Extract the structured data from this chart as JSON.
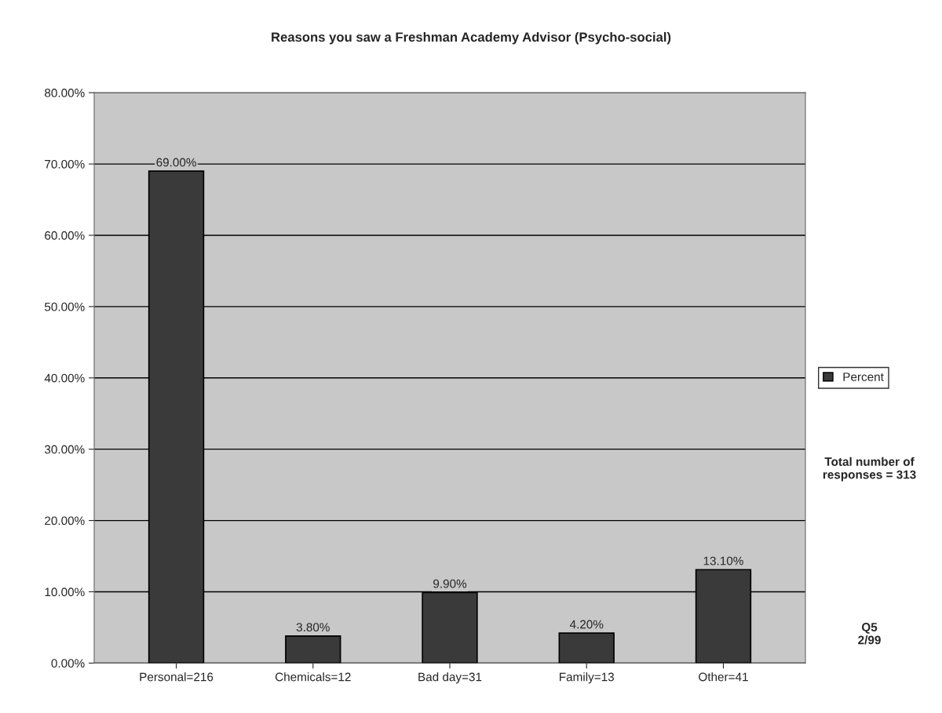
{
  "chart_data": {
    "type": "bar",
    "title": "Reasons you saw a Freshman Academy Advisor (Psycho-social)",
    "categories": [
      "Personal=216",
      "Chemicals=12",
      "Bad day=31",
      "Family=13",
      "Other=41"
    ],
    "series": [
      {
        "name": "Percent",
        "color": "#3a3a3a",
        "values": [
          69.0,
          3.8,
          9.9,
          4.2,
          13.1
        ],
        "value_labels": [
          "69.00%",
          "3.80%",
          "9.90%",
          "4.20%",
          "13.10%"
        ]
      }
    ],
    "ylim": [
      0,
      80
    ],
    "yticks": [
      {
        "value": 0,
        "label": "0.00%"
      },
      {
        "value": 10,
        "label": "10.00%"
      },
      {
        "value": 20,
        "label": "20.00%"
      },
      {
        "value": 30,
        "label": "30.00%"
      },
      {
        "value": 40,
        "label": "40.00%"
      },
      {
        "value": 50,
        "label": "50.00%"
      },
      {
        "value": 60,
        "label": "60.00%"
      },
      {
        "value": 70,
        "label": "70.00%"
      },
      {
        "value": 80,
        "label": "80.00%"
      }
    ],
    "grid": "y",
    "legend": "right",
    "annotations": [
      "Total number of responses = 313",
      "Q5\n2/99"
    ]
  }
}
